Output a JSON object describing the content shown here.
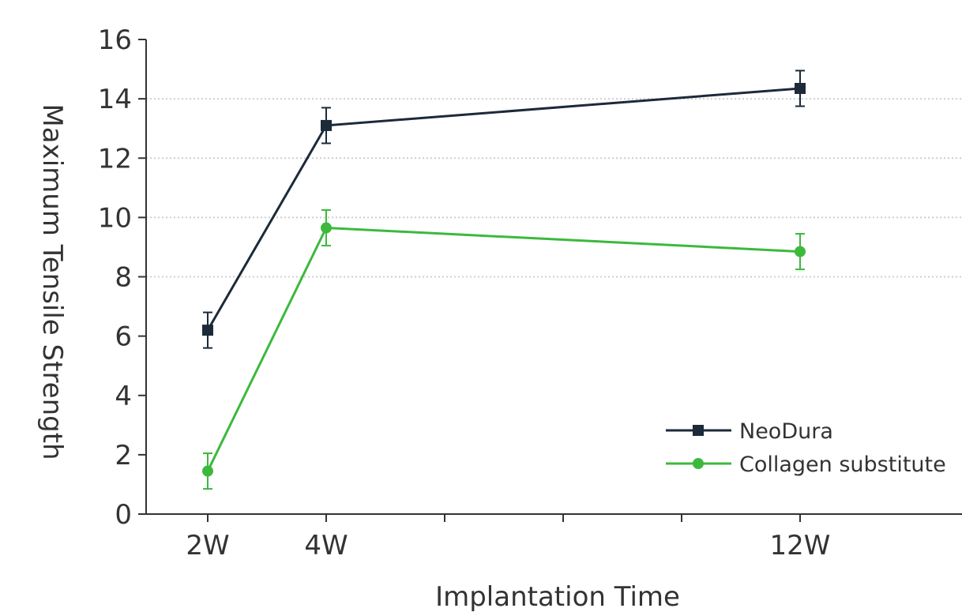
{
  "chart_data": {
    "type": "line",
    "xlabel": "Implantation Time",
    "ylabel": "Maximum Tensile Strength",
    "ylim": [
      0,
      16
    ],
    "yticks": [
      "0",
      "2",
      "4",
      "6",
      "8",
      "10",
      "12",
      "14",
      "16"
    ],
    "x_axis_weeks": [
      1,
      13
    ],
    "x_minor_ticks_weeks": [
      2,
      4,
      6,
      8,
      10,
      12
    ],
    "x_tick_labels": [
      {
        "week": 2,
        "label": "2W"
      },
      {
        "week": 4,
        "label": "4W"
      },
      {
        "week": 12,
        "label": "12W"
      }
    ],
    "grid": "horizontal dotted at 8, 10, 12, 14",
    "legend_position": "bottom-right",
    "series": [
      {
        "name": "NeoDura",
        "color": "#1c2a3a",
        "marker": "square",
        "points": [
          {
            "week": 2,
            "value": 6.2,
            "error": 0.6
          },
          {
            "week": 4,
            "value": 13.1,
            "error": 0.6
          },
          {
            "week": 12,
            "value": 14.35,
            "error": 0.6
          }
        ]
      },
      {
        "name": "Collagen substitute",
        "color": "#3cb93c",
        "marker": "circle",
        "points": [
          {
            "week": 2,
            "value": 1.45,
            "error": 0.6
          },
          {
            "week": 4,
            "value": 9.65,
            "error": 0.6
          },
          {
            "week": 12,
            "value": 8.85,
            "error": 0.6
          }
        ]
      }
    ]
  }
}
